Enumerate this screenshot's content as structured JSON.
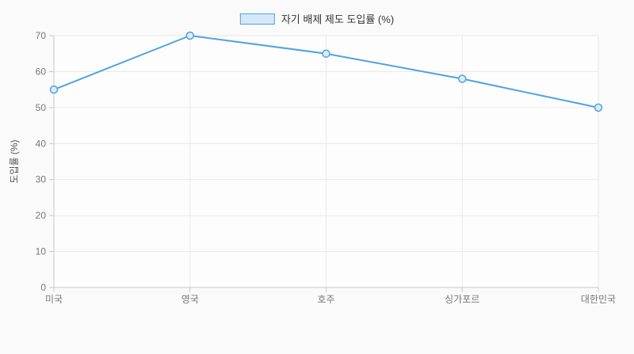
{
  "chart_data": {
    "type": "line",
    "categories": [
      "미국",
      "영국",
      "호주",
      "싱가포르",
      "대한민국"
    ],
    "series": [
      {
        "name": "자기 배제 제도 도입률 (%)",
        "values": [
          55,
          70,
          65,
          58,
          50
        ]
      }
    ],
    "title": "",
    "xlabel": "",
    "ylabel": "도입률 (%)",
    "ylim": [
      0,
      70
    ],
    "ytick_step": 10,
    "yticks": [
      0,
      10,
      20,
      30,
      40,
      50,
      60,
      70
    ],
    "grid": true,
    "legend_position": "top",
    "colors": {
      "line": "#4FA3E0",
      "point_stroke": "#4FA3E0",
      "point_fill": "#DCEBF8",
      "legend_swatch_fill": "#D6E8F7",
      "legend_swatch_border": "#4FA3E0",
      "grid": "#E8E8E8",
      "axis": "#C8C8C8",
      "tick_text": "#777777",
      "axis_title_text": "#555555",
      "legend_text": "#333333",
      "background": "#FAFAFA",
      "plot_background": "#FDFDFD"
    }
  }
}
